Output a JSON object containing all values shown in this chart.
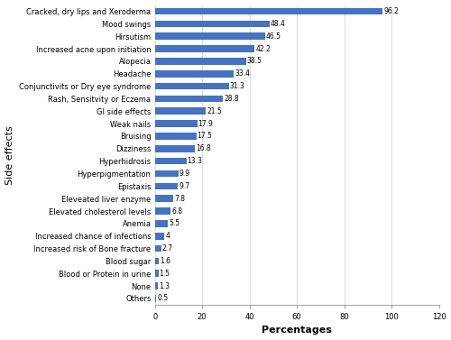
{
  "categories": [
    "Others",
    "None",
    "Blood or Protein in urine",
    "Blood sugar",
    "Increased risk of Bone fracture",
    "Increased chance of infections",
    "Anemia",
    "Elevated cholesterol levels",
    "Eleveated liver enzyme",
    "Epistaxis",
    "Hyperpigmentation",
    "Hyperhidrosis",
    "Dizziness",
    "Bruising",
    "Weak nails",
    "GI side effects",
    "Rash, Sensitvity or Eczema",
    "Conjunctivits or Dry eye syndrome",
    "Headache",
    "Alopecia",
    "Increased acne upon initiation",
    "Hirsutism",
    "Mood swings",
    "Cracked, dry lips and Xeroderma"
  ],
  "values": [
    0.5,
    1.3,
    1.5,
    1.6,
    2.7,
    4.0,
    5.5,
    6.8,
    7.8,
    9.7,
    9.9,
    13.3,
    16.8,
    17.5,
    17.9,
    21.5,
    28.8,
    31.3,
    33.4,
    38.5,
    42.2,
    46.5,
    48.4,
    96.2
  ],
  "bar_color": "#4472C4",
  "xlabel": "Percentages",
  "ylabel": "Side effects",
  "xlim": [
    0,
    120
  ],
  "xticks": [
    0,
    20,
    40,
    60,
    80,
    100,
    120
  ],
  "bar_height": 0.55,
  "value_label_fontsize": 5.5,
  "axis_label_fontsize": 8,
  "tick_label_fontsize": 6,
  "grid_color": "#D9D9D9",
  "background_color": "#FFFFFF"
}
